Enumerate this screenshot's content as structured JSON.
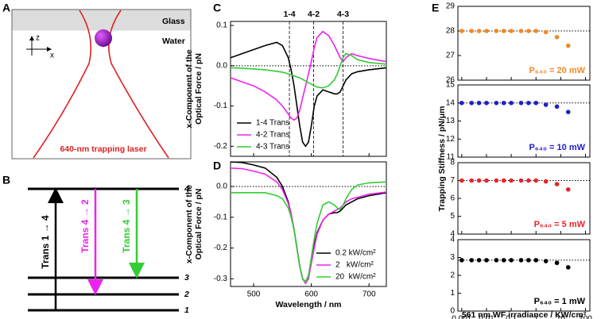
{
  "diagram_a": {
    "panel": "A",
    "glass": "Glass",
    "water": "Water",
    "z": "z",
    "x": "x",
    "laser": "640-nm trapping laser"
  },
  "diagram_b": {
    "panel": "B",
    "levels": [
      "4",
      "3",
      "2",
      "1"
    ],
    "transitions": [
      "Trans 1 → 4",
      "Trans 4 → 2",
      "Trans 4 → 3"
    ]
  },
  "chart_data": [
    {
      "type": "line",
      "panel": "C",
      "ylabel": [
        "x-Component of the",
        "Optical Force / pN"
      ],
      "x": [
        460,
        480,
        500,
        520,
        540,
        550,
        560,
        565,
        570,
        575,
        580,
        585,
        590,
        595,
        600,
        605,
        610,
        620,
        630,
        640,
        645,
        650,
        655,
        660,
        670,
        680,
        700,
        730
      ],
      "series": [
        {
          "name": "1-4 Trans",
          "color": "#000000",
          "values": [
            0.02,
            0.03,
            0.04,
            0.05,
            0.058,
            0.05,
            0.02,
            -0.01,
            -0.05,
            -0.1,
            -0.15,
            -0.19,
            -0.2,
            -0.19,
            -0.15,
            -0.1,
            -0.075,
            -0.06,
            -0.065,
            -0.07,
            -0.07,
            -0.065,
            -0.05,
            -0.035,
            -0.02,
            -0.015,
            -0.01,
            -0.005
          ]
        },
        {
          "name": "4-2 Trans",
          "color": "#ee22ee",
          "values": [
            -0.03,
            -0.04,
            -0.05,
            -0.065,
            -0.085,
            -0.1,
            -0.12,
            -0.13,
            -0.135,
            -0.13,
            -0.11,
            -0.08,
            -0.05,
            -0.02,
            0.01,
            0.045,
            0.07,
            0.085,
            0.075,
            0.05,
            0.035,
            0.02,
            0.01,
            0.02,
            0.03,
            0.025,
            0.018,
            0.01
          ]
        },
        {
          "name": "4-3 Trans",
          "color": "#33cc33",
          "values": [
            -0.005,
            -0.006,
            -0.008,
            -0.01,
            -0.014,
            -0.016,
            -0.02,
            -0.022,
            -0.025,
            -0.028,
            -0.03,
            -0.034,
            -0.038,
            -0.042,
            -0.046,
            -0.05,
            -0.053,
            -0.055,
            -0.05,
            -0.035,
            -0.02,
            0,
            0.02,
            0.03,
            0.025,
            0.015,
            0.008,
            0.004
          ]
        }
      ],
      "xlim": [
        460,
        730
      ],
      "xticks": [
        500,
        600,
        700
      ],
      "show_xtick_labels": false,
      "ylim": [
        -0.225,
        0.11
      ],
      "yticks": [
        0.1,
        {
          "value": 0,
          "label": "0.0"
        },
        -0.1,
        -0.2
      ],
      "hline": 0,
      "vlines": [
        {
          "value": 562,
          "label": "1-4"
        },
        {
          "value": 604,
          "label": "4-2"
        },
        {
          "value": 655,
          "label": "4-3"
        }
      ],
      "legend": "lower left"
    },
    {
      "type": "line",
      "panel": "D",
      "ylabel": [
        "x-Component of the",
        "Optical Force / pN"
      ],
      "xlabel": "Wavelength / nm",
      "x": [
        460,
        480,
        500,
        520,
        540,
        550,
        560,
        565,
        570,
        575,
        580,
        585,
        590,
        595,
        600,
        605,
        610,
        620,
        630,
        640,
        645,
        650,
        655,
        660,
        670,
        680,
        700,
        730
      ],
      "series": [
        {
          "name": "0.2 kW/cm²",
          "color": "#000000",
          "values": [
            0.08,
            0.078,
            0.07,
            0.06,
            0.03,
            0,
            -0.05,
            -0.09,
            -0.14,
            -0.2,
            -0.26,
            -0.3,
            -0.31,
            -0.29,
            -0.24,
            -0.19,
            -0.15,
            -0.11,
            -0.09,
            -0.085,
            -0.085,
            -0.08,
            -0.07,
            -0.06,
            -0.05,
            -0.04,
            -0.03,
            -0.02
          ]
        },
        {
          "name": "2   kW/cm²",
          "color": "#ee22ee",
          "values": [
            0.06,
            0.058,
            0.05,
            0.04,
            0.015,
            -0.01,
            -0.055,
            -0.09,
            -0.14,
            -0.2,
            -0.26,
            -0.3,
            -0.315,
            -0.3,
            -0.25,
            -0.2,
            -0.155,
            -0.11,
            -0.09,
            -0.08,
            -0.075,
            -0.07,
            -0.06,
            -0.05,
            -0.04,
            -0.035,
            -0.025,
            -0.018
          ]
        },
        {
          "name": "20  kW/cm²",
          "color": "#33cc33",
          "values": [
            -0.02,
            -0.02,
            -0.02,
            -0.02,
            -0.03,
            -0.04,
            -0.07,
            -0.1,
            -0.14,
            -0.2,
            -0.26,
            -0.3,
            -0.31,
            -0.29,
            -0.23,
            -0.17,
            -0.12,
            -0.06,
            -0.05,
            -0.06,
            -0.07,
            -0.075,
            -0.06,
            -0.04,
            -0.01,
            0.005,
            0.012,
            0.015
          ]
        }
      ],
      "xlim": [
        460,
        730
      ],
      "xticks": [
        500,
        600,
        700
      ],
      "ylim": [
        -0.325,
        0.08
      ],
      "yticks": [
        {
          "value": 0,
          "label": "0.0"
        },
        -0.1,
        -0.2,
        -0.3
      ],
      "hline": 0,
      "legend": "lower right"
    },
    {
      "type": "scatter",
      "panel": "E",
      "ylabel": [
        "Trapping Stiffness / pN/μm"
      ],
      "xscale": "log",
      "x": [
        0.001,
        0.0025,
        0.005,
        0.01,
        0.025,
        0.05,
        0.1,
        0.25,
        0.5,
        1,
        2.5,
        7,
        20
      ],
      "series": [
        {
          "color": "#f08a24",
          "values": [
            28,
            28,
            28,
            28,
            28,
            28,
            28,
            28,
            28,
            28,
            27.95,
            27.75,
            27.4
          ]
        }
      ],
      "xlim": [
        0.0007,
        150
      ],
      "xticks": [
        0.001,
        0.01,
        0.1,
        1,
        10,
        100
      ],
      "show_xtick_labels": false,
      "ylim": [
        26,
        29
      ],
      "yticks": [
        26,
        27,
        28,
        29
      ],
      "hline": 28,
      "annotation": "P₆₄₀ = 20 mW"
    },
    {
      "type": "scatter",
      "xscale": "log",
      "x": [
        0.001,
        0.0025,
        0.005,
        0.01,
        0.025,
        0.05,
        0.1,
        0.25,
        0.5,
        1,
        2.5,
        7,
        20
      ],
      "series": [
        {
          "color": "#1f1fc8",
          "values": [
            14,
            14,
            14,
            14,
            14,
            14,
            14,
            14,
            14,
            14,
            13.9,
            13.8,
            13.5
          ]
        }
      ],
      "xlim": [
        0.0007,
        150
      ],
      "xticks": [
        0.001,
        0.01,
        0.1,
        1,
        10,
        100
      ],
      "show_xtick_labels": false,
      "ylim": [
        11,
        15
      ],
      "yticks": [
        11,
        12,
        13,
        14,
        15
      ],
      "hline": 14,
      "annotation": "P₆₄₀ = 10 mW"
    },
    {
      "type": "scatter",
      "xscale": "log",
      "x": [
        0.001,
        0.0025,
        0.005,
        0.01,
        0.025,
        0.05,
        0.1,
        0.25,
        0.5,
        1,
        2.5,
        7,
        20
      ],
      "series": [
        {
          "color": "#e8232a",
          "values": [
            7,
            7,
            7,
            7,
            7,
            7,
            7,
            7,
            7,
            7,
            6.95,
            6.8,
            6.5
          ]
        }
      ],
      "xlim": [
        0.0007,
        150
      ],
      "xticks": [
        0.001,
        0.01,
        0.1,
        1,
        10,
        100
      ],
      "show_xtick_labels": false,
      "ylim": [
        4,
        8
      ],
      "yticks": [
        4,
        5,
        6,
        7,
        8
      ],
      "hline": 7,
      "annotation": "P₆₄₀ = 5 mW"
    },
    {
      "type": "scatter",
      "xscale": "log",
      "xlabel": "561 nm WF irradiance / KW/cm²",
      "x": [
        0.001,
        0.0025,
        0.005,
        0.01,
        0.025,
        0.05,
        0.1,
        0.25,
        0.5,
        1,
        2.5,
        7,
        20
      ],
      "series": [
        {
          "color": "#000000",
          "values": [
            2.85,
            2.85,
            2.85,
            2.85,
            2.85,
            2.85,
            2.85,
            2.85,
            2.85,
            2.85,
            2.8,
            2.7,
            2.45
          ]
        }
      ],
      "xlim": [
        0.0007,
        150
      ],
      "xticks": [
        0.001,
        0.01,
        0.1,
        1,
        10,
        100
      ],
      "ylim": [
        0,
        4
      ],
      "yticks": [
        0,
        1,
        2,
        3,
        4
      ],
      "hline": 2.85,
      "annotation": "P₆₄₀ = 1 mW"
    }
  ]
}
